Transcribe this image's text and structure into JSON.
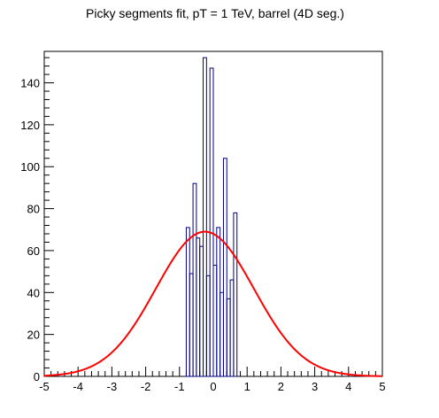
{
  "chart_data": {
    "type": "histogram",
    "title": "Picky segments fit, pT = 1 TeV, barrel (4D seg.)",
    "xlabel": "",
    "ylabel": "",
    "xlim": [
      -5,
      5
    ],
    "ylim": [
      0,
      155
    ],
    "x_ticks": [
      -5,
      -4,
      -3,
      -2,
      -1,
      0,
      1,
      2,
      3,
      4,
      5
    ],
    "y_ticks": [
      0,
      20,
      40,
      60,
      80,
      100,
      120,
      140
    ],
    "grid": false,
    "legend": "none",
    "colors": {
      "histogram": "#000080",
      "fit": "#ff0000",
      "axes": "#000000"
    },
    "histogram": {
      "bin_width": 0.1,
      "bins": [
        {
          "x0": -0.8,
          "value": 71
        },
        {
          "x0": -0.7,
          "value": 49
        },
        {
          "x0": -0.6,
          "value": 92
        },
        {
          "x0": -0.5,
          "value": 66
        },
        {
          "x0": -0.4,
          "value": 62
        },
        {
          "x0": -0.3,
          "value": 152
        },
        {
          "x0": -0.2,
          "value": 48
        },
        {
          "x0": -0.1,
          "value": 147
        },
        {
          "x0": 0.0,
          "value": 53
        },
        {
          "x0": 0.1,
          "value": 71
        },
        {
          "x0": 0.2,
          "value": 40
        },
        {
          "x0": 0.3,
          "value": 104
        },
        {
          "x0": 0.4,
          "value": 37
        },
        {
          "x0": 0.5,
          "value": 46
        },
        {
          "x0": 0.6,
          "value": 78
        }
      ]
    },
    "fit": {
      "type": "gaussian",
      "amplitude": 69,
      "mean": -0.25,
      "sigma": 1.45
    }
  }
}
